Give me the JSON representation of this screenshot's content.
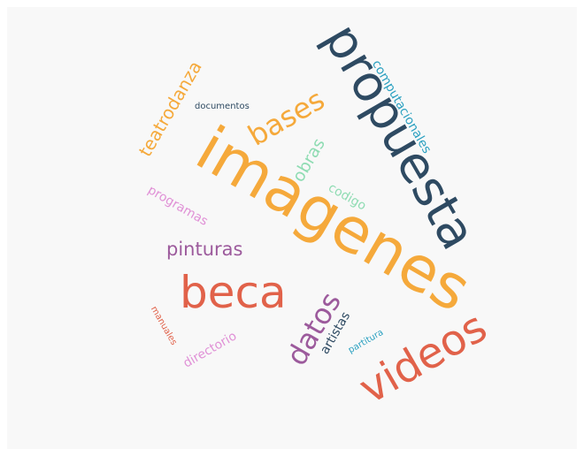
{
  "words": {
    "imagenes": {
      "text": "imagenes",
      "color": "#f5a93b"
    },
    "propuesta": {
      "text": "propuesta",
      "color": "#2e4a62"
    },
    "beca": {
      "text": "beca",
      "color": "#e1624a"
    },
    "videos": {
      "text": "videos",
      "color": "#e1624a"
    },
    "datos": {
      "text": "datos",
      "color": "#9c5a9c"
    },
    "bases": {
      "text": "bases",
      "color": "#f5a93b"
    },
    "pinturas": {
      "text": "pinturas",
      "color": "#9c5a9c"
    },
    "teatrodanza": {
      "text": "teatrodanza",
      "color": "#f5a93b"
    },
    "obras": {
      "text": "obras",
      "color": "#8fdcb3"
    },
    "computacionales": {
      "text": "computacionales",
      "color": "#2aa0c0"
    },
    "programas": {
      "text": "programas",
      "color": "#e090d6"
    },
    "codigo": {
      "text": "codigo",
      "color": "#8fdcb3"
    },
    "directorio": {
      "text": "directorio",
      "color": "#e090d6"
    },
    "artistas": {
      "text": "artistas",
      "color": "#2e4a62"
    },
    "documentos": {
      "text": "documentos",
      "color": "#2e4a62"
    },
    "manuales": {
      "text": "manuales",
      "color": "#e1624a"
    },
    "partitura": {
      "text": "partitura",
      "color": "#2aa0c0"
    }
  }
}
